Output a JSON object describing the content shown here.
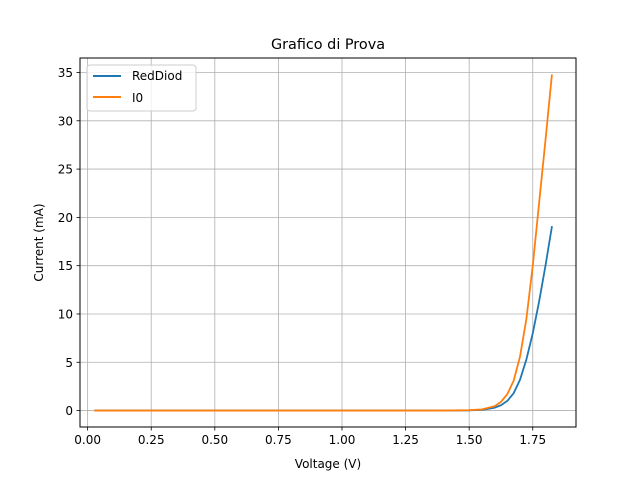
{
  "chart_data": {
    "type": "line",
    "title": "Grafico di Prova",
    "xlabel": "Voltage (V)",
    "ylabel": "Current (mA)",
    "xlim": [
      -0.03,
      1.92
    ],
    "ylim": [
      -1.7,
      36.5
    ],
    "xticks": [
      0.0,
      0.25,
      0.5,
      0.75,
      1.0,
      1.25,
      1.5,
      1.75
    ],
    "xtick_labels": [
      "0.00",
      "0.25",
      "0.50",
      "0.75",
      "1.00",
      "1.25",
      "1.50",
      "1.75"
    ],
    "yticks": [
      0,
      5,
      10,
      15,
      20,
      25,
      30,
      35
    ],
    "ytick_labels": [
      "0",
      "5",
      "10",
      "15",
      "20",
      "25",
      "30",
      "35"
    ],
    "grid": true,
    "legend_position": "top-left",
    "series": [
      {
        "name": "RedDiod",
        "color": "#1f77b4",
        "x": [
          0.03,
          0.5,
          1.0,
          1.4,
          1.5,
          1.55,
          1.6,
          1.625,
          1.65,
          1.675,
          1.7,
          1.725,
          1.75,
          1.775,
          1.8,
          1.825
        ],
        "y": [
          0,
          0,
          0,
          0,
          0.03,
          0.08,
          0.3,
          0.55,
          1.0,
          1.8,
          3.2,
          5.3,
          8.0,
          11.3,
          15.0,
          19.0
        ]
      },
      {
        "name": "I0",
        "color": "#ff7f0e",
        "x": [
          0.03,
          0.5,
          1.0,
          1.4,
          1.5,
          1.55,
          1.6,
          1.625,
          1.65,
          1.675,
          1.7,
          1.725,
          1.75,
          1.775,
          1.8,
          1.825
        ],
        "y": [
          0,
          0,
          0,
          0,
          0.04,
          0.12,
          0.45,
          0.9,
          1.7,
          3.1,
          5.6,
          9.5,
          15.0,
          21.5,
          28.0,
          34.7
        ]
      }
    ]
  }
}
